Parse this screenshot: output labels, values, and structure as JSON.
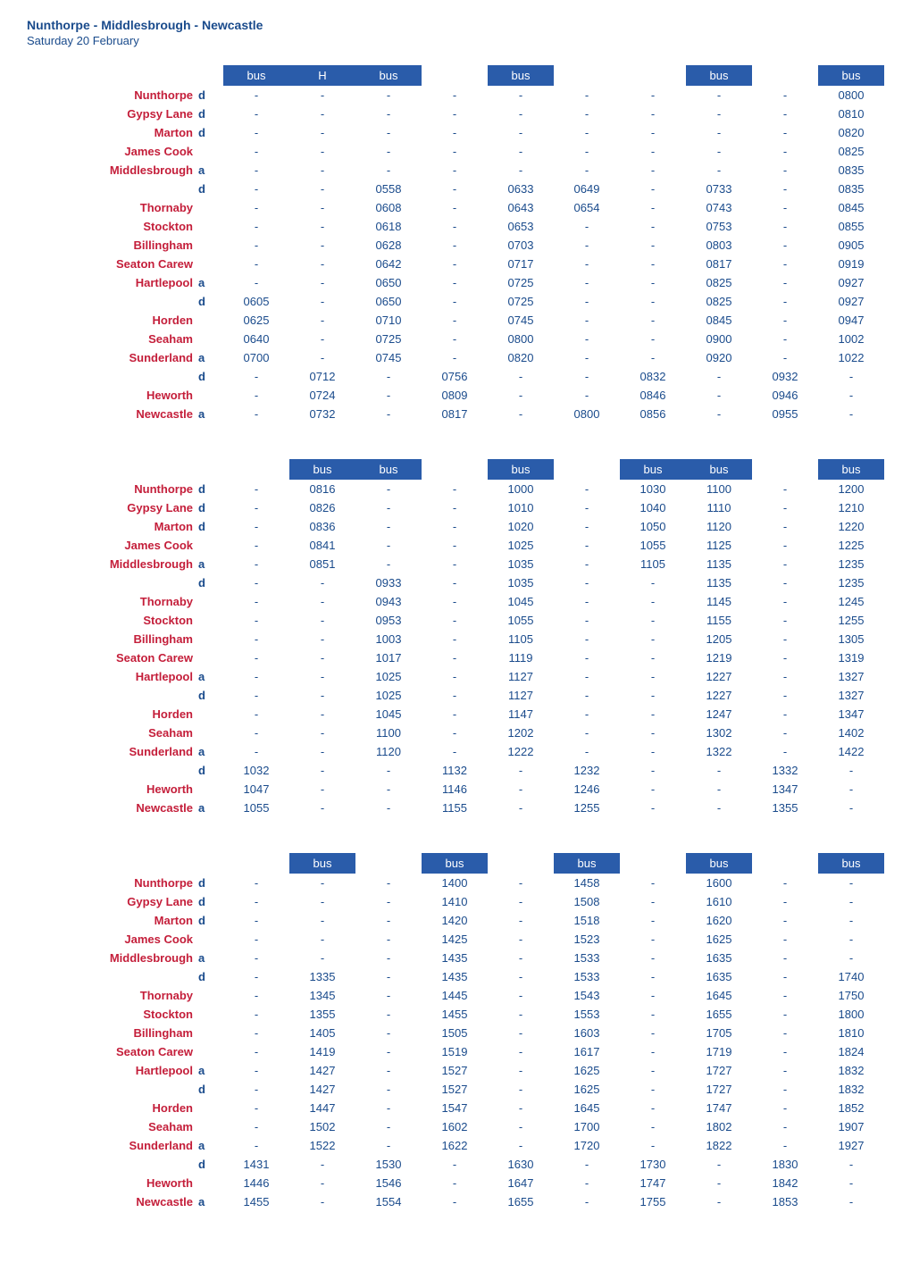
{
  "title": "Nunthorpe - Middlesbrough - Newcastle",
  "subtitle": "Saturday 20 February",
  "colors": {
    "header_bg": "#2a5caa",
    "header_fg": "#ffffff",
    "stop_color": "#c41e3a",
    "text_color": "#1a4b8c"
  },
  "stops": [
    {
      "name": "Nunthorpe",
      "ad": "d"
    },
    {
      "name": "Gypsy Lane",
      "ad": "d"
    },
    {
      "name": "Marton",
      "ad": "d"
    },
    {
      "name": "James Cook",
      "ad": ""
    },
    {
      "name": "Middlesbrough",
      "ad": "a"
    },
    {
      "name": "",
      "ad": "d"
    },
    {
      "name": "Thornaby",
      "ad": ""
    },
    {
      "name": "Stockton",
      "ad": ""
    },
    {
      "name": "Billingham",
      "ad": ""
    },
    {
      "name": "Seaton Carew",
      "ad": ""
    },
    {
      "name": "Hartlepool",
      "ad": "a"
    },
    {
      "name": "",
      "ad": "d"
    },
    {
      "name": "Horden",
      "ad": ""
    },
    {
      "name": "Seaham",
      "ad": ""
    },
    {
      "name": "Sunderland",
      "ad": "a"
    },
    {
      "name": "",
      "ad": "d"
    },
    {
      "name": "Heworth",
      "ad": ""
    },
    {
      "name": "Newcastle",
      "ad": "a"
    }
  ],
  "tables": [
    {
      "headers": [
        "bus",
        "H",
        "bus",
        "",
        "bus",
        "",
        "",
        "bus",
        "",
        "bus"
      ],
      "data": [
        [
          "-",
          "-",
          "-",
          "-",
          "-",
          "-",
          "-",
          "-",
          "-",
          "0800"
        ],
        [
          "-",
          "-",
          "-",
          "-",
          "-",
          "-",
          "-",
          "-",
          "-",
          "0810"
        ],
        [
          "-",
          "-",
          "-",
          "-",
          "-",
          "-",
          "-",
          "-",
          "-",
          "0820"
        ],
        [
          "-",
          "-",
          "-",
          "-",
          "-",
          "-",
          "-",
          "-",
          "-",
          "0825"
        ],
        [
          "-",
          "-",
          "-",
          "-",
          "-",
          "-",
          "-",
          "-",
          "-",
          "0835"
        ],
        [
          "-",
          "-",
          "0558",
          "-",
          "0633",
          "0649",
          "-",
          "0733",
          "-",
          "0835"
        ],
        [
          "-",
          "-",
          "0608",
          "-",
          "0643",
          "0654",
          "-",
          "0743",
          "-",
          "0845"
        ],
        [
          "-",
          "-",
          "0618",
          "-",
          "0653",
          "-",
          "-",
          "0753",
          "-",
          "0855"
        ],
        [
          "-",
          "-",
          "0628",
          "-",
          "0703",
          "-",
          "-",
          "0803",
          "-",
          "0905"
        ],
        [
          "-",
          "-",
          "0642",
          "-",
          "0717",
          "-",
          "-",
          "0817",
          "-",
          "0919"
        ],
        [
          "-",
          "-",
          "0650",
          "-",
          "0725",
          "-",
          "-",
          "0825",
          "-",
          "0927"
        ],
        [
          "0605",
          "-",
          "0650",
          "-",
          "0725",
          "-",
          "-",
          "0825",
          "-",
          "0927"
        ],
        [
          "0625",
          "-",
          "0710",
          "-",
          "0745",
          "-",
          "-",
          "0845",
          "-",
          "0947"
        ],
        [
          "0640",
          "-",
          "0725",
          "-",
          "0800",
          "-",
          "-",
          "0900",
          "-",
          "1002"
        ],
        [
          "0700",
          "-",
          "0745",
          "-",
          "0820",
          "-",
          "-",
          "0920",
          "-",
          "1022"
        ],
        [
          "-",
          "0712",
          "-",
          "0756",
          "-",
          "-",
          "0832",
          "-",
          "0932",
          "-"
        ],
        [
          "-",
          "0724",
          "-",
          "0809",
          "-",
          "-",
          "0846",
          "-",
          "0946",
          "-"
        ],
        [
          "-",
          "0732",
          "-",
          "0817",
          "-",
          "0800",
          "0856",
          "-",
          "0955",
          "-"
        ]
      ]
    },
    {
      "headers": [
        "",
        "bus",
        "bus",
        "",
        "bus",
        "",
        "bus",
        "bus",
        "",
        "bus"
      ],
      "data": [
        [
          "-",
          "0816",
          "-",
          "-",
          "1000",
          "-",
          "1030",
          "1100",
          "-",
          "1200"
        ],
        [
          "-",
          "0826",
          "-",
          "-",
          "1010",
          "-",
          "1040",
          "1110",
          "-",
          "1210"
        ],
        [
          "-",
          "0836",
          "-",
          "-",
          "1020",
          "-",
          "1050",
          "1120",
          "-",
          "1220"
        ],
        [
          "-",
          "0841",
          "-",
          "-",
          "1025",
          "-",
          "1055",
          "1125",
          "-",
          "1225"
        ],
        [
          "-",
          "0851",
          "-",
          "-",
          "1035",
          "-",
          "1105",
          "1135",
          "-",
          "1235"
        ],
        [
          "-",
          "-",
          "0933",
          "-",
          "1035",
          "-",
          "-",
          "1135",
          "-",
          "1235"
        ],
        [
          "-",
          "-",
          "0943",
          "-",
          "1045",
          "-",
          "-",
          "1145",
          "-",
          "1245"
        ],
        [
          "-",
          "-",
          "0953",
          "-",
          "1055",
          "-",
          "-",
          "1155",
          "-",
          "1255"
        ],
        [
          "-",
          "-",
          "1003",
          "-",
          "1105",
          "-",
          "-",
          "1205",
          "-",
          "1305"
        ],
        [
          "-",
          "-",
          "1017",
          "-",
          "1119",
          "-",
          "-",
          "1219",
          "-",
          "1319"
        ],
        [
          "-",
          "-",
          "1025",
          "-",
          "1127",
          "-",
          "-",
          "1227",
          "-",
          "1327"
        ],
        [
          "-",
          "-",
          "1025",
          "-",
          "1127",
          "-",
          "-",
          "1227",
          "-",
          "1327"
        ],
        [
          "-",
          "-",
          "1045",
          "-",
          "1147",
          "-",
          "-",
          "1247",
          "-",
          "1347"
        ],
        [
          "-",
          "-",
          "1100",
          "-",
          "1202",
          "-",
          "-",
          "1302",
          "-",
          "1402"
        ],
        [
          "-",
          "-",
          "1120",
          "-",
          "1222",
          "-",
          "-",
          "1322",
          "-",
          "1422"
        ],
        [
          "1032",
          "-",
          "-",
          "1132",
          "-",
          "1232",
          "-",
          "-",
          "1332",
          "-"
        ],
        [
          "1047",
          "-",
          "-",
          "1146",
          "-",
          "1246",
          "-",
          "-",
          "1347",
          "-"
        ],
        [
          "1055",
          "-",
          "-",
          "1155",
          "-",
          "1255",
          "-",
          "-",
          "1355",
          "-"
        ]
      ]
    },
    {
      "headers": [
        "",
        "bus",
        "",
        "bus",
        "",
        "bus",
        "",
        "bus",
        "",
        "bus"
      ],
      "data": [
        [
          "-",
          "-",
          "-",
          "1400",
          "-",
          "1458",
          "-",
          "1600",
          "-",
          "-"
        ],
        [
          "-",
          "-",
          "-",
          "1410",
          "-",
          "1508",
          "-",
          "1610",
          "-",
          "-"
        ],
        [
          "-",
          "-",
          "-",
          "1420",
          "-",
          "1518",
          "-",
          "1620",
          "-",
          "-"
        ],
        [
          "-",
          "-",
          "-",
          "1425",
          "-",
          "1523",
          "-",
          "1625",
          "-",
          "-"
        ],
        [
          "-",
          "-",
          "-",
          "1435",
          "-",
          "1533",
          "-",
          "1635",
          "-",
          "-"
        ],
        [
          "-",
          "1335",
          "-",
          "1435",
          "-",
          "1533",
          "-",
          "1635",
          "-",
          "1740"
        ],
        [
          "-",
          "1345",
          "-",
          "1445",
          "-",
          "1543",
          "-",
          "1645",
          "-",
          "1750"
        ],
        [
          "-",
          "1355",
          "-",
          "1455",
          "-",
          "1553",
          "-",
          "1655",
          "-",
          "1800"
        ],
        [
          "-",
          "1405",
          "-",
          "1505",
          "-",
          "1603",
          "-",
          "1705",
          "-",
          "1810"
        ],
        [
          "-",
          "1419",
          "-",
          "1519",
          "-",
          "1617",
          "-",
          "1719",
          "-",
          "1824"
        ],
        [
          "-",
          "1427",
          "-",
          "1527",
          "-",
          "1625",
          "-",
          "1727",
          "-",
          "1832"
        ],
        [
          "-",
          "1427",
          "-",
          "1527",
          "-",
          "1625",
          "-",
          "1727",
          "-",
          "1832"
        ],
        [
          "-",
          "1447",
          "-",
          "1547",
          "-",
          "1645",
          "-",
          "1747",
          "-",
          "1852"
        ],
        [
          "-",
          "1502",
          "-",
          "1602",
          "-",
          "1700",
          "-",
          "1802",
          "-",
          "1907"
        ],
        [
          "-",
          "1522",
          "-",
          "1622",
          "-",
          "1720",
          "-",
          "1822",
          "-",
          "1927"
        ],
        [
          "1431",
          "-",
          "1530",
          "-",
          "1630",
          "-",
          "1730",
          "-",
          "1830",
          "-"
        ],
        [
          "1446",
          "-",
          "1546",
          "-",
          "1647",
          "-",
          "1747",
          "-",
          "1842",
          "-"
        ],
        [
          "1455",
          "-",
          "1554",
          "-",
          "1655",
          "-",
          "1755",
          "-",
          "1853",
          "-"
        ]
      ]
    }
  ]
}
